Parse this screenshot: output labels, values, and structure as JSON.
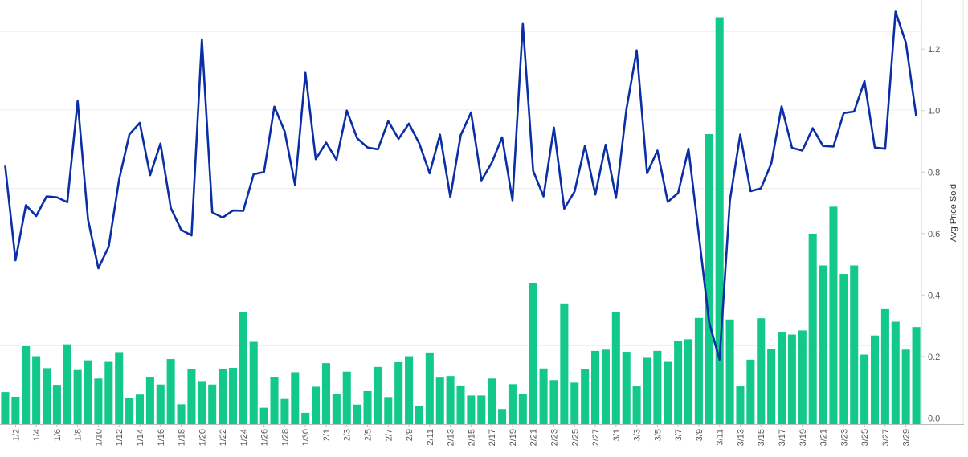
{
  "chart_data": {
    "type": "bar+line",
    "bar_color": "#12c98a",
    "line_color": "#0a2ea5",
    "grid": true,
    "legend": "none",
    "categories": [
      "1/1",
      "1/2",
      "1/3",
      "1/4",
      "1/5",
      "1/6",
      "1/7",
      "1/8",
      "1/9",
      "1/10",
      "1/11",
      "1/12",
      "1/13",
      "1/14",
      "1/15",
      "1/16",
      "1/17",
      "1/18",
      "1/19",
      "1/20",
      "1/21",
      "1/22",
      "1/23",
      "1/24",
      "1/25",
      "1/26",
      "1/27",
      "1/28",
      "1/29",
      "1/30",
      "1/31",
      "2/1",
      "2/2",
      "2/3",
      "2/4",
      "2/5",
      "2/6",
      "2/7",
      "2/8",
      "2/9",
      "2/10",
      "2/11",
      "2/12",
      "2/13",
      "2/14",
      "2/15",
      "2/16",
      "2/17",
      "2/18",
      "2/19",
      "2/20",
      "2/21",
      "2/22",
      "2/23",
      "2/24",
      "2/25",
      "2/26",
      "2/27",
      "2/28",
      "3/1",
      "3/2",
      "3/3",
      "3/4",
      "3/5",
      "3/6",
      "3/7",
      "3/8",
      "3/9",
      "3/10",
      "3/11",
      "3/12",
      "3/13",
      "3/14",
      "3/15",
      "3/16",
      "3/17",
      "3/18",
      "3/19",
      "3/20",
      "3/21",
      "3/22",
      "3/23",
      "3/24",
      "3/25",
      "3/26",
      "3/27",
      "3/28",
      "3/29",
      "3/30"
    ],
    "x_tick_labels": [
      "1/2",
      "1/4",
      "1/6",
      "1/8",
      "1/10",
      "1/12",
      "1/14",
      "1/16",
      "1/18",
      "1/20",
      "1/22",
      "1/24",
      "1/26",
      "1/28",
      "1/30",
      "2/1",
      "2/3",
      "2/5",
      "2/7",
      "2/9",
      "2/11",
      "2/13",
      "2/15",
      "2/17",
      "2/19",
      "2/21",
      "2/23",
      "2/25",
      "2/27",
      "3/1",
      "3/3",
      "3/5",
      "3/7",
      "3/9",
      "3/11",
      "3/13",
      "3/15",
      "3/17",
      "3/19",
      "3/21",
      "3/23",
      "3/25",
      "3/27",
      "3/29"
    ],
    "bar_values": [
      0.102,
      0.087,
      0.248,
      0.216,
      0.178,
      0.125,
      0.254,
      0.172,
      0.203,
      0.145,
      0.198,
      0.229,
      0.082,
      0.094,
      0.149,
      0.126,
      0.207,
      0.063,
      0.175,
      0.137,
      0.126,
      0.176,
      0.179,
      0.357,
      0.262,
      0.052,
      0.15,
      0.08,
      0.165,
      0.036,
      0.119,
      0.194,
      0.096,
      0.167,
      0.062,
      0.105,
      0.182,
      0.086,
      0.197,
      0.216,
      0.058,
      0.228,
      0.148,
      0.153,
      0.123,
      0.091,
      0.091,
      0.145,
      0.048,
      0.127,
      0.096,
      0.45,
      0.177,
      0.14,
      0.384,
      0.132,
      0.175,
      0.233,
      0.237,
      0.356,
      0.23,
      0.12,
      0.211,
      0.233,
      0.198,
      0.265,
      0.27,
      0.338,
      0.923,
      1.295,
      0.333,
      0.12,
      0.205,
      0.337,
      0.24,
      0.294,
      0.285,
      0.298,
      0.606,
      0.505,
      0.692,
      0.478,
      0.505,
      0.221,
      0.282,
      0.366,
      0.326,
      0.237,
      0.309
    ],
    "line_values": [
      0.821,
      0.513,
      0.692,
      0.657,
      0.721,
      0.718,
      0.702,
      1.031,
      0.646,
      0.487,
      0.557,
      0.775,
      0.923,
      0.96,
      0.79,
      0.893,
      0.683,
      0.612,
      0.594,
      1.232,
      0.669,
      0.652,
      0.675,
      0.674,
      0.793,
      0.8,
      1.013,
      0.932,
      0.758,
      1.123,
      0.842,
      0.896,
      0.84,
      1.0,
      0.91,
      0.88,
      0.874,
      0.966,
      0.908,
      0.958,
      0.893,
      0.796,
      0.922,
      0.719,
      0.92,
      0.994,
      0.773,
      0.83,
      0.913,
      0.708,
      1.282,
      0.804,
      0.721,
      0.945,
      0.681,
      0.737,
      0.886,
      0.727,
      0.889,
      0.716,
      1.003,
      1.196,
      0.796,
      0.87,
      0.703,
      0.732,
      0.876,
      0.596,
      0.31,
      0.19,
      0.707,
      0.922,
      0.738,
      0.747,
      0.828,
      1.014,
      0.879,
      0.87,
      0.943,
      0.885,
      0.883,
      0.992,
      0.997,
      1.096,
      0.88,
      0.876,
      1.322,
      1.221,
      0.981
    ],
    "left_axis": {
      "ylim": [
        0,
        1.35
      ],
      "grid_ticks": [
        0.25,
        0.5,
        0.75,
        1.0,
        1.25
      ]
    },
    "right_axis": {
      "label": "Avg Price Sold",
      "ylim": [
        -0.02,
        1.36
      ],
      "ticks": [
        0.0,
        0.2,
        0.4,
        0.6,
        0.8,
        1.0,
        1.2
      ],
      "tick_labels": [
        "0.0",
        "0.2",
        "0.4",
        "0.6",
        "0.8",
        "1.0",
        "1.2"
      ]
    }
  }
}
